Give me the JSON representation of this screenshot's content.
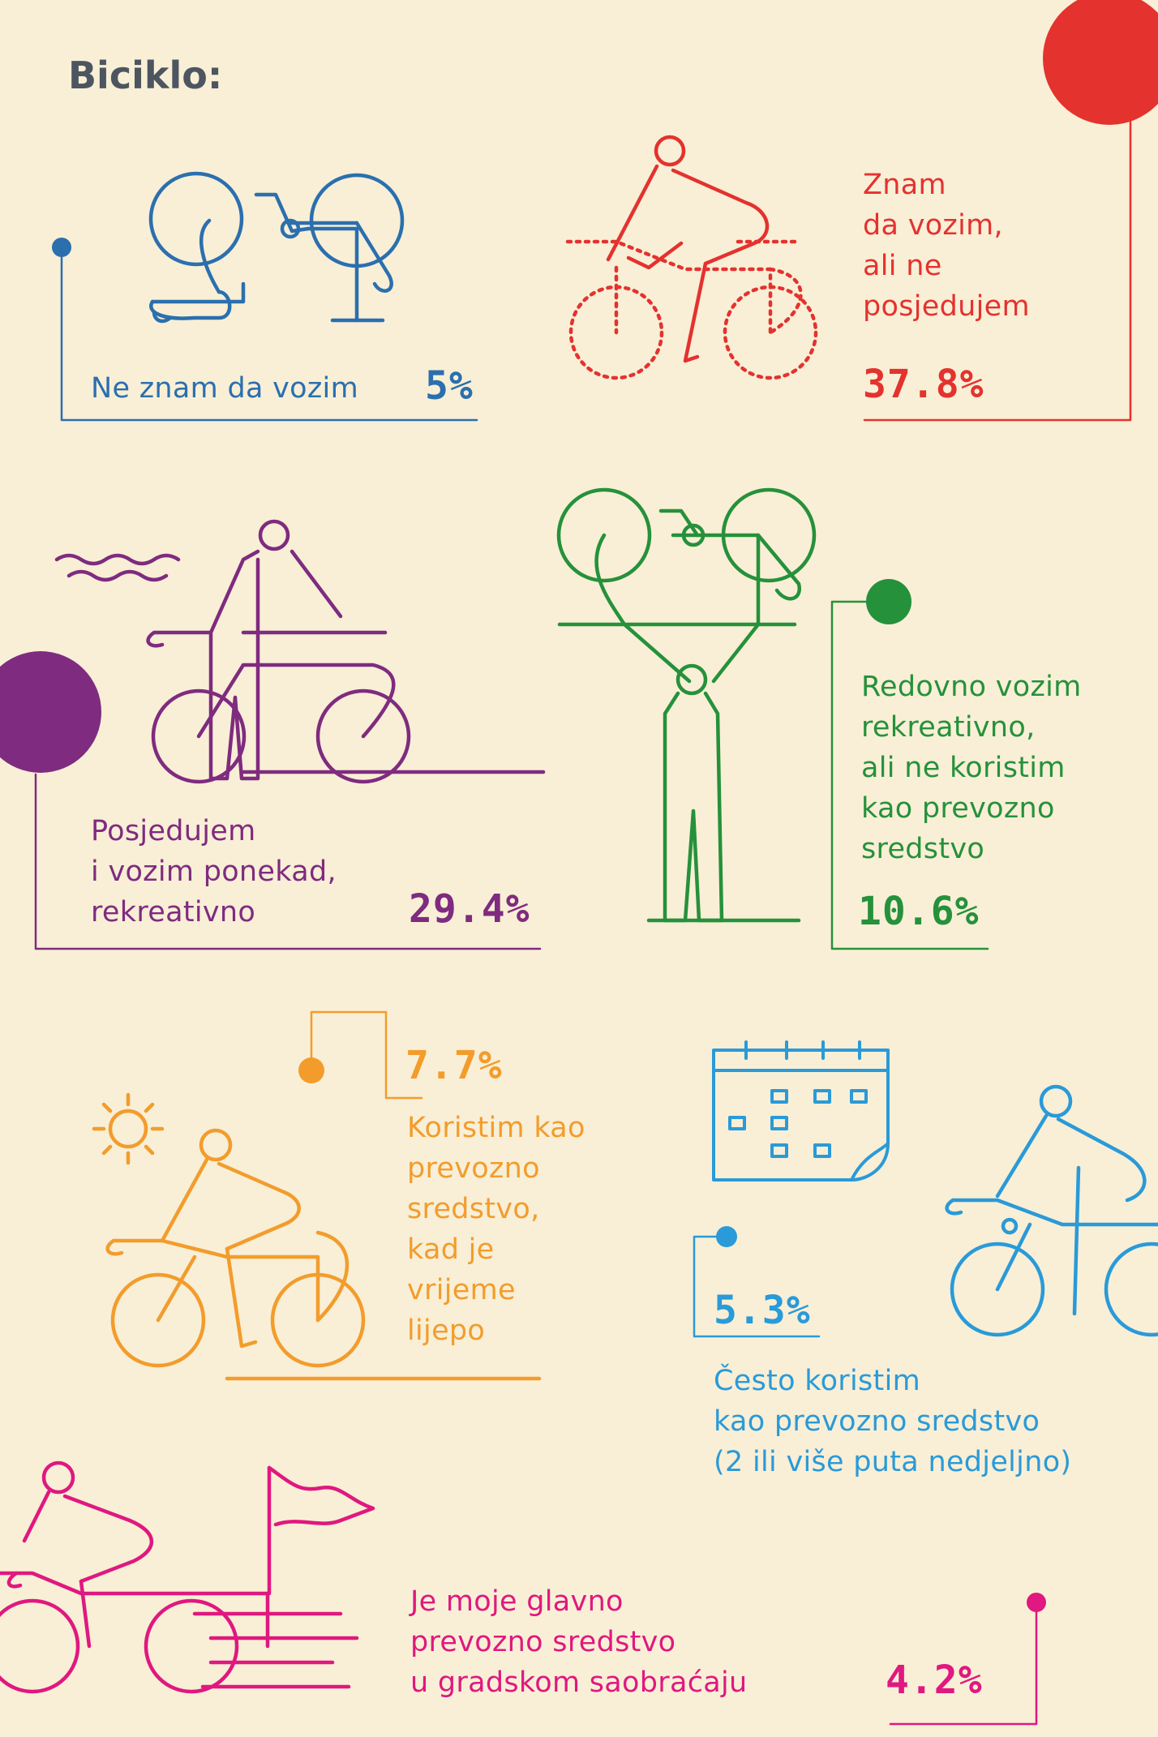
{
  "title": "Biciklo:",
  "colors": {
    "background": "#f8efd6",
    "title": "#4d5560",
    "blue": "#2b6fae",
    "red": "#e4322f",
    "purple": "#7f2b7f",
    "green": "#26913b",
    "orange": "#f39c2c",
    "light_blue": "#2a9ad8",
    "pink": "#e0187f"
  },
  "chart_data": {
    "type": "table",
    "title": "Biciklo:",
    "items": [
      {
        "label": "Ne znam da vozim",
        "value": 5,
        "display": "5%",
        "color": "#2b6fae",
        "icon": "bicycle-icon"
      },
      {
        "label": "Znam da vozim, ali ne posjedujem",
        "value": 37.8,
        "display": "37.8%",
        "color": "#e4322f",
        "icon": "cyclist-icon"
      },
      {
        "label": "Posjedujem i vozim ponekad, rekreativno",
        "value": 29.4,
        "display": "29.4%",
        "color": "#7f2b7f",
        "icon": "person-with-bicycle-icon"
      },
      {
        "label": "Redovno vozim rekreativno, ali ne koristim kao prevozno sredstvo",
        "value": 10.6,
        "display": "10.6%",
        "color": "#26913b",
        "icon": "person-lifting-bicycle-icon"
      },
      {
        "label": "Koristim kao prevozno sredstvo, kad je vrijeme lijepo",
        "value": 7.7,
        "display": "7.7%",
        "color": "#f39c2c",
        "icon": "sun-icon"
      },
      {
        "label": "Često koristim kao prevozno sredstvo (2 ili više puta nedjeljno)",
        "value": 5.3,
        "display": "5.3%",
        "color": "#2a9ad8",
        "icon": "calendar-icon"
      },
      {
        "label": "Je moje glavno prevozno sredstvo u gradskom saobraćaju",
        "value": 4.2,
        "display": "4.2%",
        "color": "#e0187f",
        "icon": "flag-icon"
      }
    ]
  },
  "blocks": {
    "blue": {
      "lines": [
        "Ne znam da vozim"
      ],
      "pct": "5%"
    },
    "red": {
      "lines": [
        "Znam",
        "da vozim,",
        "ali ne",
        "posjedujem"
      ],
      "pct": "37.8%"
    },
    "purple": {
      "lines": [
        "Posjedujem",
        "i vozim ponekad,",
        "rekreativno"
      ],
      "pct": "29.4%"
    },
    "green": {
      "lines": [
        "Redovno vozim",
        "rekreativno,",
        "ali ne koristim",
        "kao prevozno",
        "sredstvo"
      ],
      "pct": "10.6%"
    },
    "orange": {
      "lines": [
        "Koristim kao",
        "prevozno",
        "sredstvo,",
        "kad je",
        "vrijeme",
        "lijepo"
      ],
      "pct": "7.7%"
    },
    "lightblue": {
      "lines": [
        "Često koristim",
        "kao prevozno sredstvo",
        "(2 ili više puta nedjeljno)"
      ],
      "pct": "5.3%"
    },
    "pink": {
      "lines": [
        "Je moje glavno",
        "prevozno sredstvo",
        "u gradskom saobraćaju"
      ],
      "pct": "4.2%"
    }
  }
}
